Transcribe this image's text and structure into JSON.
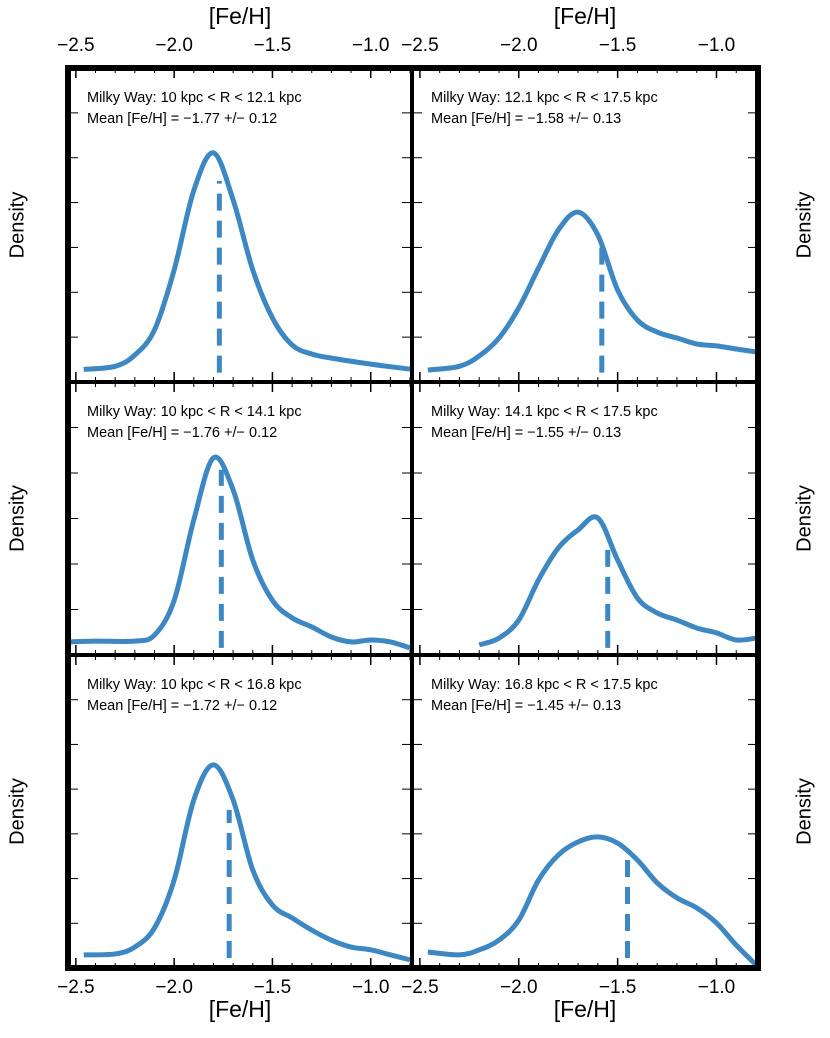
{
  "chart_data": [
    {
      "type": "line",
      "annotations": [
        "Milky Way: 10 kpc < R < 12.1 kpc",
        "Mean [Fe/H] =  −1.77  +/−  0.12"
      ],
      "xlabel": "[Fe/H]",
      "xaxis_position": "top",
      "ylabel": "Density",
      "x": [
        -2.46,
        -2.3,
        -2.2,
        -2.1,
        -2.0,
        -1.9,
        -1.8,
        -1.7,
        -1.6,
        -1.5,
        -1.4,
        -1.3,
        -1.2,
        -1.0,
        -0.8
      ],
      "series": [
        {
          "color": "#3d87c2",
          "values": [
            0.04,
            0.05,
            0.086,
            0.166,
            0.357,
            0.61,
            0.73,
            0.58,
            0.357,
            0.204,
            0.118,
            0.089,
            0.076,
            0.057,
            0.041
          ]
        }
      ],
      "mean_line": {
        "x": -1.77,
        "y": [
          0.03,
          0.64
        ]
      },
      "xlim": [
        -2.54,
        -0.79
      ],
      "ylim": [
        0,
        1
      ],
      "xticks": [
        {
          "value": -2.5,
          "label": "−2.5"
        },
        {
          "value": -2.0,
          "label": "−2.0"
        },
        {
          "value": -1.5,
          "label": "−1.5"
        },
        {
          "value": -1.0,
          "label": "−1.0"
        }
      ]
    },
    {
      "type": "line",
      "annotations": [
        "Milky Way: 12.1 kpc < R < 17.5 kpc",
        "Mean [Fe/H] =  −1.58  +/−  0.13"
      ],
      "xlabel": "[Fe/H]",
      "xaxis_position": "top",
      "ylabel": "Density",
      "x": [
        -2.46,
        -2.3,
        -2.2,
        -2.1,
        -2.0,
        -1.9,
        -1.8,
        -1.7,
        -1.6,
        -1.5,
        -1.4,
        -1.3,
        -1.2,
        -1.1,
        -1.0,
        -0.9,
        -0.8
      ],
      "series": [
        {
          "color": "#3d87c2",
          "values": [
            0.038,
            0.05,
            0.083,
            0.14,
            0.236,
            0.363,
            0.484,
            0.541,
            0.468,
            0.293,
            0.197,
            0.159,
            0.14,
            0.121,
            0.115,
            0.105,
            0.096
          ]
        }
      ],
      "mean_line": {
        "x": -1.58,
        "y": [
          0.03,
          0.455
        ]
      },
      "xlim": [
        -2.54,
        -0.79
      ],
      "ylim": [
        0,
        1
      ],
      "xticks": [
        {
          "value": -2.5,
          "label": "−2.5"
        },
        {
          "value": -2.0,
          "label": "−2.0"
        },
        {
          "value": -1.5,
          "label": "−1.5"
        },
        {
          "value": -1.0,
          "label": "−1.0"
        }
      ]
    },
    {
      "type": "line",
      "annotations": [
        "Milky Way: 10 kpc < R < 14.1 kpc",
        "Mean [Fe/H] =  −1.76  +/−  0.12"
      ],
      "ylabel": "Density",
      "x": [
        -2.54,
        -2.4,
        -2.2,
        -2.1,
        -2.0,
        -1.9,
        -1.8,
        -1.7,
        -1.6,
        -1.5,
        -1.4,
        -1.3,
        -1.2,
        -1.1,
        -1.0,
        -0.9,
        -0.8
      ],
      "series": [
        {
          "color": "#3d87c2",
          "values": [
            0.048,
            0.051,
            0.051,
            0.073,
            0.2,
            0.495,
            0.722,
            0.605,
            0.348,
            0.2,
            0.136,
            0.103,
            0.066,
            0.048,
            0.055,
            0.048,
            0.026
          ]
        }
      ],
      "mean_line": {
        "x": -1.76,
        "y": [
          0.026,
          0.678
        ]
      },
      "xlim": [
        -2.54,
        -0.79
      ],
      "ylim": [
        0,
        1
      ],
      "xticks": [
        {
          "value": -2.5,
          "label": "−2.5"
        },
        {
          "value": -2.0,
          "label": "−2.0"
        },
        {
          "value": -1.5,
          "label": "−1.5"
        },
        {
          "value": -1.0,
          "label": "−1.0"
        }
      ]
    },
    {
      "type": "line",
      "annotations": [
        "Milky Way: 14.1 kpc < R < 17.5 kpc",
        "Mean [Fe/H] =  −1.55  +/−  0.13"
      ],
      "ylabel": "Density",
      "x": [
        -2.2,
        -2.1,
        -2.0,
        -1.9,
        -1.8,
        -1.7,
        -1.6,
        -1.5,
        -1.4,
        -1.3,
        -1.2,
        -1.1,
        -1.0,
        -0.9,
        -0.8
      ],
      "series": [
        {
          "color": "#3d87c2",
          "values": [
            0.037,
            0.062,
            0.128,
            0.275,
            0.392,
            0.458,
            0.502,
            0.348,
            0.209,
            0.154,
            0.128,
            0.099,
            0.081,
            0.055,
            0.062
          ]
        }
      ],
      "mean_line": {
        "x": -1.55,
        "y": [
          0.026,
          0.421
        ]
      },
      "xlim": [
        -2.54,
        -0.79
      ],
      "ylim": [
        0,
        1
      ],
      "xticks": [
        {
          "value": -2.5,
          "label": "−2.5"
        },
        {
          "value": -2.0,
          "label": "−2.0"
        },
        {
          "value": -1.5,
          "label": "−1.5"
        },
        {
          "value": -1.0,
          "label": "−1.0"
        }
      ]
    },
    {
      "type": "line",
      "annotations": [
        "Milky Way: 10 kpc < R < 16.8 kpc",
        "Mean [Fe/H] =  −1.72  +/−  0.12"
      ],
      "xlabel": "[Fe/H]",
      "xaxis_position": "bottom",
      "ylabel": "Density",
      "x": [
        -2.46,
        -2.3,
        -2.2,
        -2.1,
        -2.0,
        -1.9,
        -1.8,
        -1.7,
        -1.6,
        -1.5,
        -1.4,
        -1.3,
        -1.2,
        -1.1,
        -1.0,
        -0.9,
        -0.8
      ],
      "series": [
        {
          "color": "#3d87c2",
          "values": [
            0.042,
            0.045,
            0.067,
            0.128,
            0.281,
            0.537,
            0.649,
            0.537,
            0.313,
            0.201,
            0.16,
            0.121,
            0.089,
            0.067,
            0.058,
            0.042,
            0.026
          ]
        }
      ],
      "mean_line": {
        "x": -1.72,
        "y": [
          0.032,
          0.505
        ]
      },
      "xlim": [
        -2.54,
        -0.79
      ],
      "ylim": [
        0,
        1
      ],
      "xticks": [
        {
          "value": -2.5,
          "label": "−2.5"
        },
        {
          "value": -2.0,
          "label": "−2.0"
        },
        {
          "value": -1.5,
          "label": "−1.5"
        },
        {
          "value": -1.0,
          "label": "−1.0"
        }
      ]
    },
    {
      "type": "line",
      "annotations": [
        "Milky Way: 16.8 kpc < R < 17.5 kpc",
        "Mean [Fe/H] =  −1.45  +/−  0.13"
      ],
      "xlabel": "[Fe/H]",
      "xaxis_position": "bottom",
      "ylabel": "Density",
      "x": [
        -2.46,
        -2.3,
        -2.2,
        -2.1,
        -2.0,
        -1.9,
        -1.8,
        -1.7,
        -1.6,
        -1.5,
        -1.4,
        -1.3,
        -1.2,
        -1.1,
        -1.0,
        -0.9,
        -0.8
      ],
      "series": [
        {
          "color": "#3d87c2",
          "values": [
            0.051,
            0.042,
            0.058,
            0.089,
            0.153,
            0.281,
            0.361,
            0.403,
            0.419,
            0.399,
            0.345,
            0.272,
            0.224,
            0.192,
            0.144,
            0.073,
            0.01
          ]
        }
      ],
      "mean_line": {
        "x": -1.45,
        "y": [
          0.032,
          0.377
        ]
      },
      "xlim": [
        -2.54,
        -0.79
      ],
      "ylim": [
        0,
        1
      ],
      "xticks": [
        {
          "value": -2.5,
          "label": "−2.5"
        },
        {
          "value": -2.0,
          "label": "−2.0"
        },
        {
          "value": -1.5,
          "label": "−1.5"
        },
        {
          "value": -1.0,
          "label": "−1.0"
        }
      ]
    }
  ]
}
